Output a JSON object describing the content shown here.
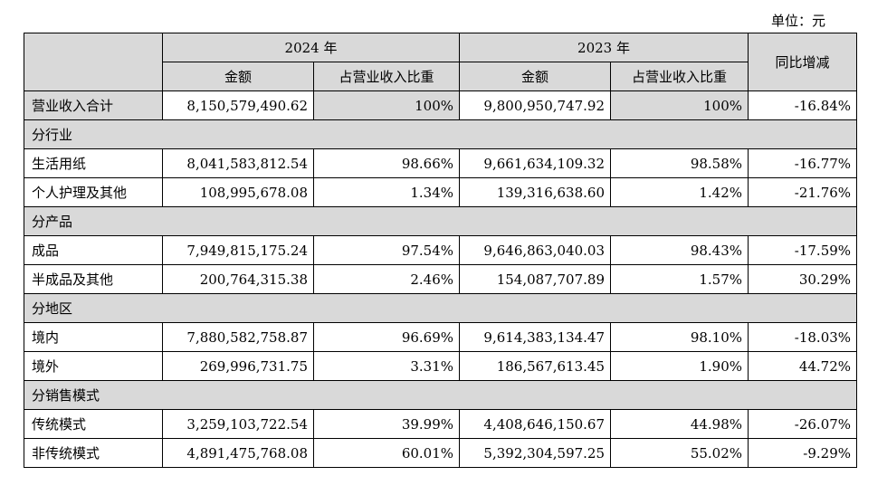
{
  "unit": "单位：元",
  "header": {
    "year_2024": "2024 年",
    "year_2023": "2023 年",
    "amount_2024": "金额",
    "ratio_2024": "占营业收入比重",
    "amount_2023": "金额",
    "ratio_2023": "占营业收入比重",
    "yoy": "同比增减"
  },
  "total": {
    "label": "营业收入合计",
    "amount_2024": "8,150,579,490.62",
    "ratio_2024": "100%",
    "amount_2023": "9,800,950,747.92",
    "ratio_2023": "100%",
    "yoy": "-16.84%"
  },
  "sections": [
    {
      "title": "分行业",
      "rows": [
        {
          "label": "生活用纸",
          "amount_2024": "8,041,583,812.54",
          "ratio_2024": "98.66%",
          "amount_2023": "9,661,634,109.32",
          "ratio_2023": "98.58%",
          "yoy": "-16.77%"
        },
        {
          "label": "个人护理及其他",
          "amount_2024": "108,995,678.08",
          "ratio_2024": "1.34%",
          "amount_2023": "139,316,638.60",
          "ratio_2023": "1.42%",
          "yoy": "-21.76%"
        }
      ]
    },
    {
      "title": "分产品",
      "rows": [
        {
          "label": "成品",
          "amount_2024": "7,949,815,175.24",
          "ratio_2024": "97.54%",
          "amount_2023": "9,646,863,040.03",
          "ratio_2023": "98.43%",
          "yoy": "-17.59%"
        },
        {
          "label": "半成品及其他",
          "amount_2024": "200,764,315.38",
          "ratio_2024": "2.46%",
          "amount_2023": "154,087,707.89",
          "ratio_2023": "1.57%",
          "yoy": "30.29%"
        }
      ]
    },
    {
      "title": "分地区",
      "rows": [
        {
          "label": "境内",
          "amount_2024": "7,880,582,758.87",
          "ratio_2024": "96.69%",
          "amount_2023": "9,614,383,134.47",
          "ratio_2023": "98.10%",
          "yoy": "-18.03%"
        },
        {
          "label": "境外",
          "amount_2024": "269,996,731.75",
          "ratio_2024": "3.31%",
          "amount_2023": "186,567,613.45",
          "ratio_2023": "1.90%",
          "yoy": "44.72%"
        }
      ]
    },
    {
      "title": "分销售模式",
      "rows": [
        {
          "label": "传统模式",
          "amount_2024": "3,259,103,722.54",
          "ratio_2024": "39.99%",
          "amount_2023": "4,408,646,150.67",
          "ratio_2023": "44.98%",
          "yoy": "-26.07%"
        },
        {
          "label": "非传统模式",
          "amount_2024": "4,891,475,768.08",
          "ratio_2024": "60.01%",
          "amount_2023": "5,392,304,597.25",
          "ratio_2023": "55.02%",
          "yoy": "-9.29%"
        }
      ]
    }
  ]
}
